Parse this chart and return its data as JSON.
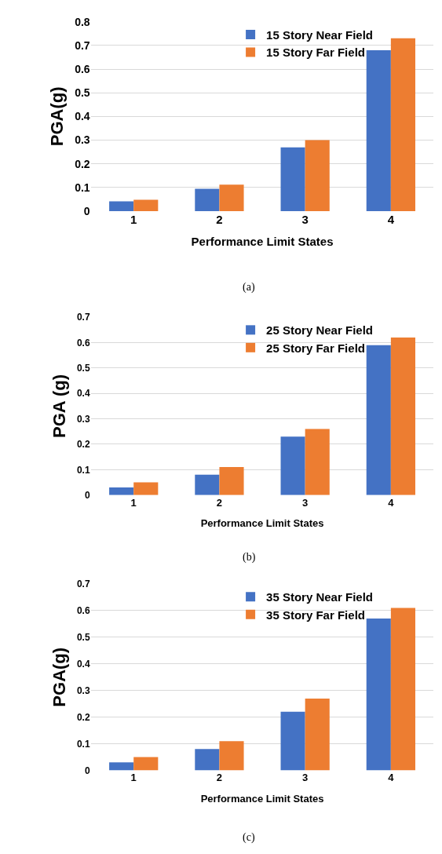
{
  "chart_data": [
    {
      "type": "bar",
      "categories": [
        "1",
        "2",
        "3",
        "4"
      ],
      "xlabel": "Performance Limit States",
      "ylabel": "PGA(g)",
      "ylim": [
        0,
        0.8
      ],
      "yticks": [
        0,
        0.1,
        0.2,
        0.3,
        0.4,
        0.5,
        0.6,
        0.7,
        0.8
      ],
      "grid": "y",
      "legend": "top",
      "annotations": [
        "(a)"
      ],
      "series": [
        {
          "name": "15 Story Near Field",
          "color": "#4472c4",
          "values": [
            0.042,
            0.095,
            0.27,
            0.68
          ]
        },
        {
          "name": "15 Story Far Field",
          "color": "#ed7d31",
          "values": [
            0.048,
            0.112,
            0.3,
            0.73
          ]
        }
      ]
    },
    {
      "type": "bar",
      "categories": [
        "1",
        "2",
        "3",
        "4"
      ],
      "xlabel": "Performance Limit States",
      "ylabel": "PGA (g)",
      "ylim": [
        0,
        0.7
      ],
      "yticks": [
        0,
        0.1,
        0.2,
        0.3,
        0.4,
        0.5,
        0.6,
        0.7
      ],
      "grid": "y",
      "legend": "top",
      "annotations": [
        "(b)"
      ],
      "series": [
        {
          "name": "25 Story Near Field",
          "color": "#4472c4",
          "values": [
            0.03,
            0.08,
            0.23,
            0.59
          ]
        },
        {
          "name": "25 Story Far Field",
          "color": "#ed7d31",
          "values": [
            0.05,
            0.11,
            0.26,
            0.62
          ]
        }
      ]
    },
    {
      "type": "bar",
      "categories": [
        "1",
        "2",
        "3",
        "4"
      ],
      "xlabel": "Performance Limit States",
      "ylabel": "PGA(g)",
      "ylim": [
        0,
        0.7
      ],
      "yticks": [
        0,
        0.1,
        0.2,
        0.3,
        0.4,
        0.5,
        0.6,
        0.7
      ],
      "grid": "y",
      "legend": "top",
      "annotations": [
        "(c)"
      ],
      "series": [
        {
          "name": "35 Story Near Field",
          "color": "#4472c4",
          "values": [
            0.03,
            0.08,
            0.22,
            0.57
          ]
        },
        {
          "name": "35 Story Far Field",
          "color": "#ed7d31",
          "values": [
            0.05,
            0.11,
            0.27,
            0.61
          ]
        }
      ]
    }
  ]
}
